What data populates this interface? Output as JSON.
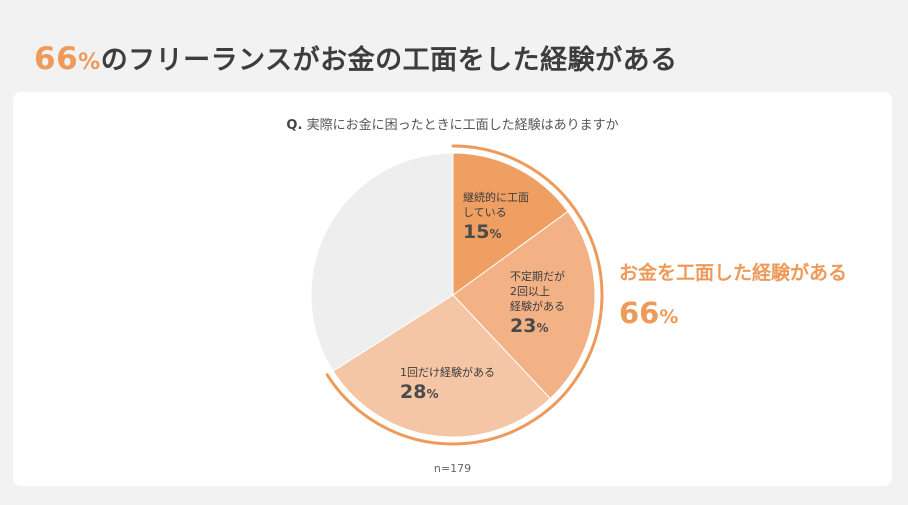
{
  "headline": {
    "number": "66",
    "unit": "%",
    "text": "のフリーランスがお金の工面をした経験がある"
  },
  "question": {
    "prefix": "Q.",
    "text": "実際にお金に困ったときに工面した経験はありますか"
  },
  "chart_data": {
    "type": "pie",
    "title": "実際にお金に困ったときに工面した経験はありますか",
    "unit": "%",
    "slices": [
      {
        "label": "継続的に工面している",
        "label_lines": [
          "継続的に工面",
          "している"
        ],
        "value": 15,
        "color": "#ee9f61"
      },
      {
        "label": "不定期だが2回以上経験がある",
        "label_lines": [
          "不定期だが",
          "2回以上",
          "経験がある"
        ],
        "value": 23,
        "color": "#f2b286"
      },
      {
        "label": "1回だけ経験がある",
        "label_lines": [
          "1回だけ経験がある"
        ],
        "value": 28,
        "color": "#f5c6a5"
      },
      {
        "label": "",
        "value": 34,
        "color": "#eeeeee"
      }
    ],
    "callout": {
      "label": "お金を工面した経験がある",
      "value": 66,
      "color": "#ee9a5a"
    },
    "note": "n=179"
  }
}
